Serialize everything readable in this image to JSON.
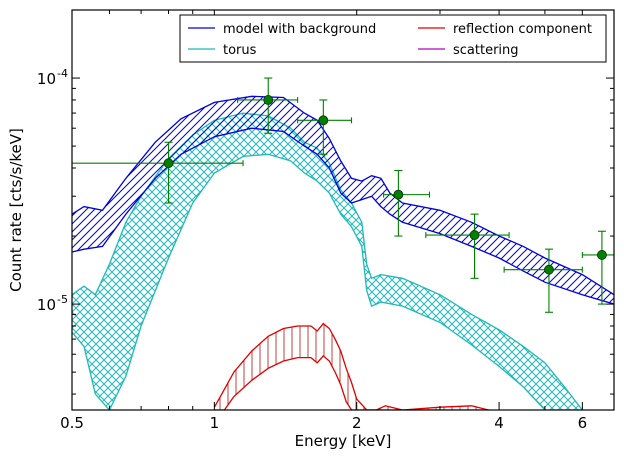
{
  "chart_data": {
    "type": "line",
    "xlabel": "Energy [keV]",
    "ylabel": "Count rate [cts/s/keV]",
    "xscale": "log",
    "yscale": "log",
    "xlim": [
      0.5,
      7.0
    ],
    "ylim": [
      3.4e-06,
      0.0002
    ],
    "x_ticks": [
      {
        "value": 0.5,
        "label": "0.5"
      },
      {
        "value": 1,
        "label": "1"
      },
      {
        "value": 2,
        "label": "2"
      },
      {
        "value": 4,
        "label": "4"
      },
      {
        "value": 6,
        "label": "6"
      }
    ],
    "y_ticks": [
      {
        "value": 1e-05,
        "base": "10",
        "exp": "-5"
      },
      {
        "value": 0.0001,
        "base": "10",
        "exp": "-4"
      }
    ],
    "legend": {
      "placement": "top-right",
      "entries": [
        {
          "label": "model with background",
          "color": "#0000e0"
        },
        {
          "label": "reflection component",
          "color": "#e00000"
        },
        {
          "label": "torus",
          "color": "#20b8b8"
        },
        {
          "label": "scattering",
          "color": "#b000c0"
        }
      ]
    },
    "series": [
      {
        "name": "model with background",
        "color": "#0000e0",
        "x": [
          0.5,
          0.53,
          0.58,
          0.65,
          0.75,
          0.85,
          1.0,
          1.2,
          1.4,
          1.55,
          1.65,
          1.75,
          1.85,
          1.95,
          2.05,
          2.15,
          2.25,
          2.35,
          2.5,
          3.0,
          3.5,
          4.0,
          4.5,
          5.0,
          6.0,
          7.0
        ],
        "upper": [
          2.5e-05,
          2.7e-05,
          2.6e-05,
          3.6e-05,
          5.2e-05,
          6.6e-05,
          7.8e-05,
          8.3e-05,
          8.2e-05,
          7e-05,
          6.5e-05,
          5.4e-05,
          4.3e-05,
          3.6e-05,
          3.5e-05,
          3.7e-05,
          3.6e-05,
          3.1e-05,
          2.8e-05,
          2.6e-05,
          2.3e-05,
          2e-05,
          1.8e-05,
          1.6e-05,
          1.35e-05,
          1.1e-05
        ],
        "lower": [
          1.7e-05,
          1.75e-05,
          1.8e-05,
          2.5e-05,
          3.6e-05,
          4.6e-05,
          5.5e-05,
          6e-05,
          5.8e-05,
          5e-05,
          4.6e-05,
          4e-05,
          3.1e-05,
          2.8e-05,
          2.9e-05,
          3e-05,
          2.7e-05,
          2.5e-05,
          2.3e-05,
          2.05e-05,
          1.8e-05,
          1.6e-05,
          1.4e-05,
          1.25e-05,
          1.1e-05,
          1e-05
        ]
      },
      {
        "name": "torus",
        "color": "#20b8b8",
        "x": [
          0.5,
          0.53,
          0.56,
          0.6,
          0.65,
          0.7,
          0.8,
          0.9,
          1.0,
          1.15,
          1.3,
          1.45,
          1.55,
          1.65,
          1.75,
          1.85,
          1.95,
          2.05,
          2.1,
          2.15,
          2.25,
          2.5,
          3.0,
          3.5,
          4.0,
          4.5,
          5.0,
          5.5,
          6.0
        ],
        "upper": [
          1.1e-05,
          1.2e-05,
          1.1e-05,
          1.5e-05,
          2.3e-05,
          3e-05,
          4.4e-05,
          5.6e-05,
          6.5e-05,
          7e-05,
          6.8e-05,
          6e-05,
          5.2e-05,
          4.9e-05,
          4.2e-05,
          3.2e-05,
          2.8e-05,
          2.3e-05,
          1.5e-05,
          1.3e-05,
          1.35e-05,
          1.3e-05,
          1.1e-05,
          9e-06,
          7.7e-06,
          6.5e-06,
          5.5e-06,
          4.3e-06,
          3.4e-06
        ],
        "lower": [
          7.5e-06,
          6.5e-06,
          4e-06,
          3.4e-06,
          4.8e-06,
          8e-06,
          1.6e-05,
          2.8e-05,
          3.8e-05,
          4.5e-05,
          4.6e-05,
          4.3e-05,
          3.8e-05,
          3.5e-05,
          3.1e-05,
          2.5e-05,
          2.2e-05,
          1.8e-05,
          1.15e-05,
          9.8e-06,
          1.02e-05,
          9.8e-06,
          8.3e-06,
          6.6e-06,
          5.3e-06,
          4.3e-06,
          3.4e-06,
          3.4e-06,
          3.4e-06
        ]
      },
      {
        "name": "reflection component",
        "color": "#e00000",
        "x": [
          1.0,
          1.05,
          1.1,
          1.2,
          1.3,
          1.4,
          1.5,
          1.6,
          1.65,
          1.7,
          1.75,
          1.8,
          1.85,
          1.9,
          1.95,
          2.0,
          2.1,
          2.2,
          2.3,
          2.5,
          3.0,
          3.5,
          3.8
        ],
        "upper": [
          3.5e-06,
          4.2e-06,
          5e-06,
          6.2e-06,
          7.2e-06,
          7.8e-06,
          8e-06,
          8e-06,
          7.6e-06,
          8.2e-06,
          7.8e-06,
          7e-06,
          6.2e-06,
          5.2e-06,
          4.5e-06,
          3.8e-06,
          3.4e-06,
          3.4e-06,
          3.55e-06,
          3.4e-06,
          3.5e-06,
          3.55e-06,
          3.4e-06
        ],
        "lower": [
          3.4e-06,
          3.4e-06,
          3.9e-06,
          4.6e-06,
          5.2e-06,
          5.6e-06,
          5.8e-06,
          5.8e-06,
          5.5e-06,
          5.9e-06,
          5.6e-06,
          5e-06,
          4.4e-06,
          3.7e-06,
          3.4e-06,
          3.4e-06,
          3.4e-06,
          3.4e-06,
          3.4e-06,
          3.4e-06,
          3.4e-06,
          3.4e-06,
          3.4e-06
        ]
      }
    ],
    "data_points": [
      {
        "x": 0.8,
        "y": 4.2e-05,
        "xerr": [
          0.5,
          1.15
        ],
        "yerr": [
          2.8e-05,
          5.2e-05
        ]
      },
      {
        "x": 1.3,
        "y": 8e-05,
        "xerr": [
          1.12,
          1.5
        ],
        "yerr": [
          5.7e-05,
          0.0001
        ]
      },
      {
        "x": 1.7,
        "y": 6.5e-05,
        "xerr": [
          1.5,
          1.95
        ],
        "yerr": [
          4.6e-05,
          8e-05
        ]
      },
      {
        "x": 2.45,
        "y": 3.05e-05,
        "xerr": [
          2.28,
          2.85
        ],
        "yerr": [
          2e-05,
          3.9e-05
        ]
      },
      {
        "x": 3.55,
        "y": 2.02e-05,
        "xerr": [
          2.8,
          4.2
        ],
        "yerr": [
          1.3e-05,
          2.5e-05
        ]
      },
      {
        "x": 5.1,
        "y": 1.42e-05,
        "xerr": [
          4.1,
          6.0
        ],
        "yerr": [
          9.2e-06,
          1.75e-05
        ]
      },
      {
        "x": 6.6,
        "y": 1.65e-05,
        "xerr": [
          6.0,
          7.0
        ],
        "yerr": [
          1e-05,
          2.1e-05
        ]
      }
    ],
    "point_color": "#008000",
    "grid": false
  }
}
